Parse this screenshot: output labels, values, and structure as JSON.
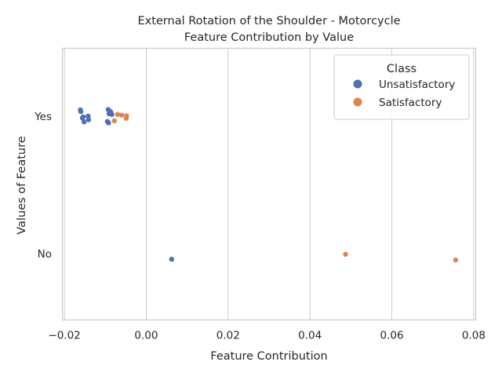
{
  "chart_data": {
    "type": "scatter",
    "title_line1": "External Rotation of the Shoulder - Motorcycle",
    "title_line2": "Feature Contribution by Value",
    "xlabel": "Feature Contribution",
    "ylabel": "Values of Feature",
    "xlim": [
      -0.0205,
      0.0805
    ],
    "x_ticks": [
      -0.02,
      0.0,
      0.02,
      0.04,
      0.06,
      0.08
    ],
    "x_tick_labels": [
      "−0.02",
      "0.00",
      "0.02",
      "0.04",
      "0.06",
      "0.08"
    ],
    "categories": [
      "Yes",
      "No"
    ],
    "grid": true,
    "legend": {
      "title": "Class",
      "placement": "top-right",
      "entries": [
        {
          "label": "Unsatisfactory",
          "color": "#4c72b0"
        },
        {
          "label": "Satisfactory",
          "color": "#dd8452"
        }
      ]
    },
    "series": [
      {
        "name": "Unsatisfactory",
        "color": "#4c72b0",
        "points": [
          {
            "x": -0.0161,
            "category": "Yes",
            "jitter": -0.09
          },
          {
            "x": -0.016,
            "category": "Yes",
            "jitter": -0.065
          },
          {
            "x": -0.0156,
            "category": "Yes",
            "jitter": 0.025
          },
          {
            "x": -0.0154,
            "category": "Yes",
            "jitter": 0.01
          },
          {
            "x": -0.0142,
            "category": "Yes",
            "jitter": 0.0
          },
          {
            "x": -0.0141,
            "category": "Yes",
            "jitter": 0.05
          },
          {
            "x": -0.0152,
            "category": "Yes",
            "jitter": 0.08
          },
          {
            "x": -0.0093,
            "category": "Yes",
            "jitter": -0.095
          },
          {
            "x": -0.0087,
            "category": "Yes",
            "jitter": -0.065
          },
          {
            "x": -0.0091,
            "category": "Yes",
            "jitter": -0.035
          },
          {
            "x": -0.0084,
            "category": "Yes",
            "jitter": -0.025
          },
          {
            "x": -0.0095,
            "category": "Yes",
            "jitter": 0.075
          },
          {
            "x": -0.0092,
            "category": "Yes",
            "jitter": 0.095
          },
          {
            "x": 0.0062,
            "category": "No",
            "jitter": 0.08
          }
        ]
      },
      {
        "name": "Satisfactory",
        "color": "#dd8452",
        "points": [
          {
            "x": -0.007,
            "category": "Yes",
            "jitter": -0.025
          },
          {
            "x": -0.006,
            "category": "Yes",
            "jitter": -0.015
          },
          {
            "x": -0.0048,
            "category": "Yes",
            "jitter": -0.005
          },
          {
            "x": -0.0049,
            "category": "Yes",
            "jitter": 0.03
          },
          {
            "x": -0.0078,
            "category": "Yes",
            "jitter": 0.065
          },
          {
            "x": 0.0487,
            "category": "No",
            "jitter": 0.01
          },
          {
            "x": 0.0756,
            "category": "No",
            "jitter": 0.09
          }
        ]
      }
    ]
  }
}
